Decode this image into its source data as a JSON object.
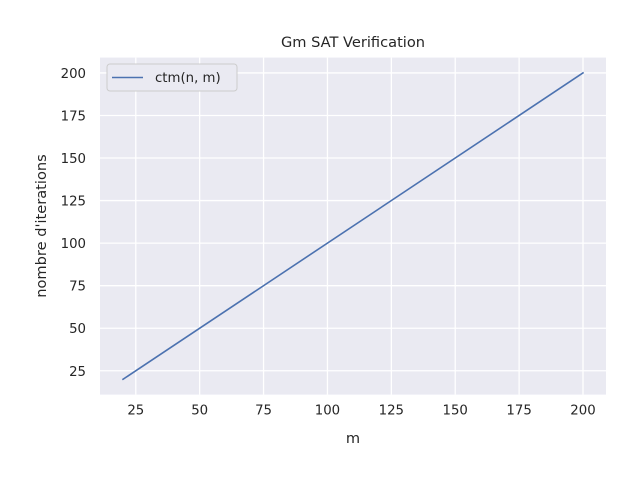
{
  "chart_data": {
    "type": "line",
    "title": "Gm SAT Verification",
    "xlabel": "m",
    "ylabel": "nombre d'iterations",
    "xlim": [
      11,
      209
    ],
    "ylim": [
      11,
      209
    ],
    "xticks": [
      25,
      50,
      75,
      100,
      125,
      150,
      175,
      200
    ],
    "yticks": [
      25,
      50,
      75,
      100,
      125,
      150,
      175,
      200
    ],
    "grid": true,
    "legend_position": "top-left",
    "series": [
      {
        "name": "ctm(n, m)",
        "color": "#4c72b0",
        "x": [
          20,
          200
        ],
        "y": [
          20,
          200
        ]
      }
    ]
  },
  "colors": {
    "plot_background": "#eaeaf2",
    "grid": "#ffffff",
    "legend_background": "#eaeaf2",
    "legend_border": "#cccccc"
  }
}
